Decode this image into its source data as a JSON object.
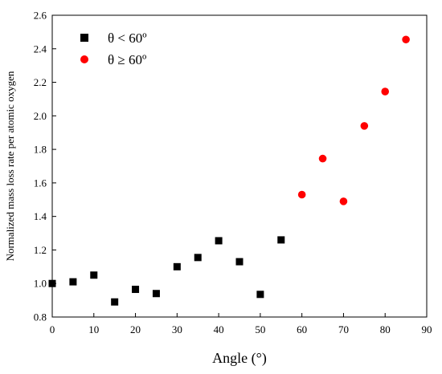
{
  "chart_data": {
    "type": "scatter",
    "xlabel": "Angle (°)",
    "ylabel": "Normalized mass loss rate per atomic oxygen",
    "xlim": [
      0,
      90
    ],
    "ylim": [
      0.8,
      2.6
    ],
    "x_ticks": [
      0,
      10,
      20,
      30,
      40,
      50,
      60,
      70,
      80,
      90
    ],
    "y_ticks": [
      0.8,
      1.0,
      1.2,
      1.4,
      1.6,
      1.8,
      2.0,
      2.2,
      2.4,
      2.6
    ],
    "x_tick_labels": [
      "0",
      "10",
      "20",
      "30",
      "40",
      "50",
      "60",
      "70",
      "80",
      "90"
    ],
    "y_tick_labels": [
      "0.8",
      "1.0",
      "1.2",
      "1.4",
      "1.6",
      "1.8",
      "2.0",
      "2.2",
      "2.4",
      "2.6"
    ],
    "grid": false,
    "legend_position": "top-left",
    "series": [
      {
        "name": "θ < 60º",
        "marker": "square",
        "color": "#000000",
        "x": [
          0,
          5,
          10,
          15,
          20,
          25,
          30,
          35,
          40,
          45,
          50,
          55
        ],
        "y": [
          1.0,
          1.01,
          1.05,
          0.89,
          0.965,
          0.94,
          1.1,
          1.155,
          1.255,
          1.13,
          0.935,
          1.26
        ]
      },
      {
        "name": "θ ≥ 60º",
        "marker": "circle",
        "color": "#ff0000",
        "x": [
          60,
          65,
          70,
          75,
          80,
          85
        ],
        "y": [
          1.53,
          1.745,
          1.49,
          1.94,
          2.145,
          2.455
        ]
      }
    ]
  }
}
